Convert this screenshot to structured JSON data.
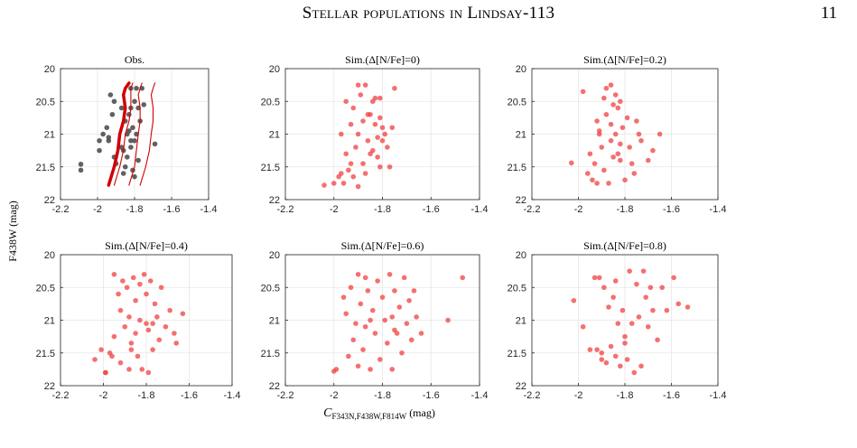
{
  "header": {
    "running_title": "Stellar populations in Lindsay-113",
    "page_number": "11"
  },
  "figure": {
    "ylabel": "F438W (mag)",
    "xlabel": "C_{F343N,F438W,F814W} (mag)",
    "xlabel_main": "C",
    "xlabel_sub": "F343N,F438W,F814W",
    "xlabel_unit": " (mag)"
  },
  "chart_data": [
    {
      "type": "scatter",
      "title": "Obs.",
      "xlim": [
        -2.2,
        -1.4
      ],
      "ylim": [
        22,
        20
      ],
      "y_inverted": true,
      "xticks": [
        "-2.2",
        "-2",
        "-1.8",
        "-1.6",
        "-1.4"
      ],
      "yticks": [
        "20",
        "20.5",
        "21",
        "21.5",
        "22"
      ],
      "grid": true,
      "marker_color": "#505050",
      "x": [
        -2.09,
        -2.09,
        -1.99,
        -1.99,
        -1.97,
        -1.95,
        -1.94,
        -1.94,
        -1.93,
        -1.92,
        -1.91,
        -1.9,
        -1.87,
        -1.86,
        -1.85,
        -1.85,
        -1.84,
        -1.84,
        -1.83,
        -1.82,
        -1.82,
        -1.82,
        -1.81,
        -1.81,
        -1.8,
        -1.8,
        -1.79,
        -1.79,
        -1.78,
        -1.78,
        -1.77,
        -1.76,
        -1.75,
        -1.69,
        -1.91,
        -1.87,
        -1.86,
        -1.82,
        -1.8,
        -1.83
      ],
      "y": [
        21.46,
        21.55,
        21.1,
        21.25,
        21.0,
        20.9,
        21.05,
        21.1,
        20.4,
        20.7,
        21.35,
        21.45,
        21.2,
        21.25,
        21.5,
        20.8,
        21.0,
        21.35,
        20.7,
        20.3,
        20.6,
        21.1,
        20.9,
        21.55,
        20.5,
        21.1,
        20.3,
        21.0,
        20.6,
        21.4,
        20.8,
        20.3,
        20.55,
        21.15,
        20.5,
        20.6,
        21.6,
        21.2,
        21.65,
        20.95
      ],
      "lines": [
        {
          "name": "",
          "color": "#d10000",
          "width": 3.5,
          "x": [
            -1.94,
            -1.91,
            -1.89,
            -1.88,
            -1.86,
            -1.85,
            -1.86,
            -1.85,
            -1.83
          ],
          "y": [
            21.78,
            21.5,
            21.25,
            21.0,
            20.8,
            20.6,
            20.4,
            20.3,
            20.22
          ]
        },
        {
          "name": "",
          "color": "#d10000",
          "width": 1.1,
          "x": [
            -1.91,
            -1.88,
            -1.86,
            -1.85,
            -1.83,
            -1.82,
            -1.82,
            -1.82,
            -1.81
          ],
          "y": [
            21.78,
            21.5,
            21.25,
            21.0,
            20.8,
            20.6,
            20.4,
            20.3,
            20.22
          ]
        },
        {
          "name": "",
          "color": "#d10000",
          "width": 1.1,
          "x": [
            -1.83,
            -1.8,
            -1.79,
            -1.78,
            -1.77,
            -1.77,
            -1.78,
            -1.77,
            -1.76
          ],
          "y": [
            21.78,
            21.5,
            21.25,
            21.0,
            20.8,
            20.6,
            20.4,
            20.3,
            20.22
          ]
        },
        {
          "name": "",
          "color": "#d10000",
          "width": 1.1,
          "x": [
            -1.77,
            -1.74,
            -1.72,
            -1.71,
            -1.7,
            -1.7,
            -1.71,
            -1.7,
            -1.69
          ],
          "y": [
            21.78,
            21.5,
            21.25,
            21.0,
            20.8,
            20.6,
            20.4,
            20.3,
            20.22
          ]
        }
      ]
    },
    {
      "type": "scatter",
      "title": "Sim.(Δ[N/Fe]=0)",
      "xlim": [
        -2.2,
        -1.4
      ],
      "ylim": [
        22,
        20
      ],
      "y_inverted": true,
      "xticks": [
        "-2.2",
        "-2",
        "-1.8",
        "-1.6",
        "-1.4"
      ],
      "yticks": [
        "20",
        "20.5",
        "21",
        "21.5",
        "22"
      ],
      "grid": true,
      "marker_color": "#f04040",
      "x": [
        -2.04,
        -2.0,
        -1.98,
        -1.97,
        -1.96,
        -1.95,
        -1.95,
        -1.94,
        -1.93,
        -1.92,
        -1.92,
        -1.91,
        -1.9,
        -1.9,
        -1.89,
        -1.88,
        -1.88,
        -1.87,
        -1.87,
        -1.86,
        -1.86,
        -1.85,
        -1.84,
        -1.84,
        -1.83,
        -1.83,
        -1.82,
        -1.82,
        -1.81,
        -1.81,
        -1.8,
        -1.8,
        -1.79,
        -1.78,
        -1.77,
        -1.76,
        -1.75,
        -1.97,
        -1.9,
        -1.85,
        -1.81,
        -1.93
      ],
      "y": [
        21.78,
        21.75,
        21.65,
        21.6,
        21.75,
        20.5,
        21.3,
        21.55,
        21.45,
        21.65,
        20.6,
        21.2,
        20.25,
        21.0,
        20.4,
        20.8,
        21.45,
        21.6,
        20.25,
        21.1,
        20.7,
        21.3,
        20.5,
        21.25,
        20.45,
        20.85,
        21.35,
        21.05,
        20.45,
        20.75,
        21.1,
        20.9,
        21.0,
        21.2,
        21.5,
        20.9,
        20.3,
        21.0,
        21.8,
        20.7,
        21.5,
        20.85
      ]
    },
    {
      "type": "scatter",
      "title": "Sim.(Δ[N/Fe]=0.2)",
      "xlim": [
        -2.2,
        -1.4
      ],
      "ylim": [
        22,
        20
      ],
      "y_inverted": true,
      "xticks": [
        "-2.2",
        "-2",
        "-1.8",
        "-1.6",
        "-1.4"
      ],
      "yticks": [
        "20",
        "20.5",
        "21",
        "21.5",
        "22"
      ],
      "grid": true,
      "marker_color": "#f04040",
      "x": [
        -2.03,
        -1.98,
        -1.96,
        -1.95,
        -1.94,
        -1.93,
        -1.92,
        -1.92,
        -1.91,
        -1.9,
        -1.89,
        -1.89,
        -1.88,
        -1.88,
        -1.87,
        -1.86,
        -1.86,
        -1.85,
        -1.85,
        -1.84,
        -1.84,
        -1.83,
        -1.83,
        -1.82,
        -1.82,
        -1.81,
        -1.8,
        -1.79,
        -1.78,
        -1.77,
        -1.76,
        -1.75,
        -1.74,
        -1.73,
        -1.7,
        -1.68,
        -1.65,
        -1.91,
        -1.86,
        -1.82
      ],
      "y": [
        21.44,
        20.35,
        21.6,
        21.3,
        21.7,
        21.45,
        21.75,
        20.8,
        21.0,
        21.2,
        20.45,
        21.55,
        20.3,
        20.7,
        21.75,
        20.25,
        21.1,
        20.55,
        21.35,
        20.4,
        21.0,
        20.6,
        21.3,
        20.5,
        21.15,
        20.9,
        21.7,
        20.75,
        21.2,
        21.45,
        21.6,
        20.8,
        21.0,
        21.1,
        21.4,
        21.25,
        21.0,
        20.95,
        20.85,
        21.4
      ]
    },
    {
      "type": "scatter",
      "title": "Sim.(Δ[N/Fe]=0.4)",
      "xlim": [
        -2.2,
        -1.4
      ],
      "ylim": [
        22,
        20
      ],
      "y_inverted": true,
      "xticks": [
        "-2.2",
        "-2",
        "-1.8",
        "-1.6",
        "-1.4"
      ],
      "yticks": [
        "20",
        "20.5",
        "21",
        "21.5",
        "22"
      ],
      "grid": true,
      "marker_color": "#f04040",
      "x": [
        -2.04,
        -2.01,
        -1.99,
        -1.99,
        -1.97,
        -1.95,
        -1.95,
        -1.93,
        -1.92,
        -1.92,
        -1.91,
        -1.9,
        -1.89,
        -1.88,
        -1.88,
        -1.87,
        -1.86,
        -1.85,
        -1.85,
        -1.84,
        -1.83,
        -1.83,
        -1.82,
        -1.81,
        -1.8,
        -1.79,
        -1.79,
        -1.78,
        -1.77,
        -1.77,
        -1.76,
        -1.75,
        -1.74,
        -1.73,
        -1.71,
        -1.69,
        -1.67,
        -1.66,
        -1.63,
        -1.96,
        -1.87,
        -1.8
      ],
      "y": [
        21.6,
        21.45,
        21.8,
        21.8,
        21.5,
        20.3,
        21.25,
        20.6,
        20.85,
        21.65,
        20.4,
        21.1,
        20.5,
        21.75,
        20.95,
        21.35,
        20.35,
        21.2,
        20.7,
        21.55,
        20.45,
        21.0,
        21.75,
        20.3,
        20.6,
        21.15,
        21.8,
        20.4,
        21.05,
        21.45,
        20.75,
        20.95,
        21.3,
        20.5,
        21.1,
        20.85,
        21.2,
        21.35,
        20.9,
        21.55,
        21.45,
        21.05
      ]
    },
    {
      "type": "scatter",
      "title": "Sim.(Δ[N/Fe]=0.6)",
      "xlim": [
        -2.2,
        -1.4
      ],
      "ylim": [
        22,
        20
      ],
      "y_inverted": true,
      "xticks": [
        "-2.2",
        "-2",
        "-1.8",
        "-1.6",
        "-1.4"
      ],
      "yticks": [
        "20",
        "20.5",
        "21",
        "21.5",
        "22"
      ],
      "grid": true,
      "marker_color": "#f04040",
      "x": [
        -2.0,
        -1.99,
        -1.96,
        -1.95,
        -1.94,
        -1.93,
        -1.92,
        -1.91,
        -1.9,
        -1.9,
        -1.89,
        -1.88,
        -1.87,
        -1.87,
        -1.86,
        -1.85,
        -1.84,
        -1.83,
        -1.82,
        -1.81,
        -1.8,
        -1.79,
        -1.78,
        -1.77,
        -1.76,
        -1.76,
        -1.75,
        -1.74,
        -1.73,
        -1.72,
        -1.71,
        -1.7,
        -1.69,
        -1.68,
        -1.67,
        -1.66,
        -1.64,
        -1.53,
        -1.47,
        -1.85,
        -1.75
      ],
      "y": [
        21.78,
        21.75,
        20.65,
        20.9,
        21.55,
        20.5,
        21.3,
        21.05,
        20.3,
        21.7,
        20.75,
        21.45,
        20.35,
        21.1,
        20.55,
        21.75,
        20.85,
        21.2,
        20.4,
        21.6,
        20.65,
        21.0,
        21.35,
        20.3,
        20.95,
        21.75,
        20.55,
        21.2,
        20.8,
        21.5,
        20.35,
        21.05,
        20.7,
        21.3,
        20.55,
        20.95,
        21.2,
        21.0,
        20.35,
        21.0,
        21.15
      ]
    },
    {
      "type": "scatter",
      "title": "Sim.(Δ[N/Fe]=0.8)",
      "xlim": [
        -2.2,
        -1.4
      ],
      "ylim": [
        22,
        20
      ],
      "y_inverted": true,
      "xticks": [
        "-2.2",
        "-2",
        "-1.8",
        "-1.6",
        "-1.4"
      ],
      "yticks": [
        "20",
        "20.5",
        "21",
        "21.5",
        "22"
      ],
      "grid": true,
      "marker_color": "#f04040",
      "x": [
        -2.02,
        -1.98,
        -1.95,
        -1.93,
        -1.92,
        -1.91,
        -1.9,
        -1.89,
        -1.88,
        -1.87,
        -1.86,
        -1.85,
        -1.84,
        -1.84,
        -1.83,
        -1.82,
        -1.81,
        -1.8,
        -1.79,
        -1.78,
        -1.77,
        -1.76,
        -1.75,
        -1.74,
        -1.73,
        -1.72,
        -1.71,
        -1.7,
        -1.69,
        -1.68,
        -1.66,
        -1.64,
        -1.62,
        -1.59,
        -1.57,
        -1.53,
        -1.9,
        -1.8
      ],
      "y": [
        20.7,
        21.1,
        21.45,
        20.35,
        21.45,
        20.35,
        21.5,
        20.5,
        21.65,
        20.8,
        21.4,
        20.65,
        21.55,
        20.4,
        21.05,
        21.7,
        20.85,
        21.25,
        21.6,
        20.25,
        21.05,
        21.8,
        20.45,
        20.95,
        21.7,
        20.25,
        20.65,
        21.1,
        20.5,
        20.85,
        21.3,
        20.5,
        20.85,
        20.35,
        20.75,
        20.8,
        21.6,
        21.35
      ]
    }
  ]
}
